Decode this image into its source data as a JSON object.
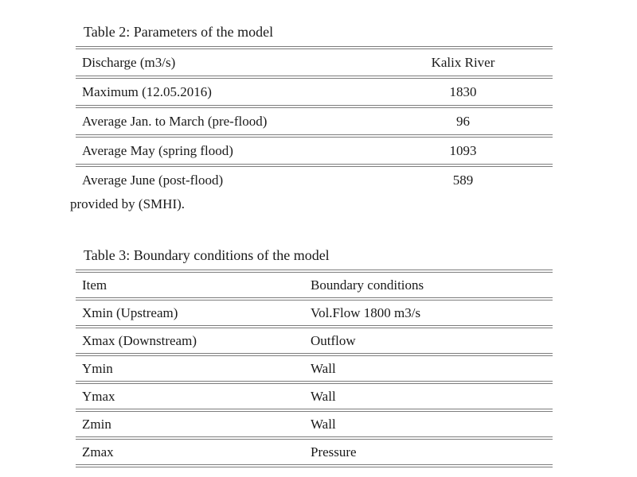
{
  "style": {
    "background": "#ffffff",
    "text_color": "#1a1a1a",
    "rule_color": "#7c7c7c"
  },
  "tables": [
    {
      "caption": "Table 2: Parameters of the model",
      "columns": [
        "Discharge (m3/s)",
        "Kalix River"
      ],
      "rows": [
        [
          "Maximum (12.05.2016)",
          "1830"
        ],
        [
          "Average Jan. to March (pre-flood)",
          "96"
        ],
        [
          "Average May (spring flood)",
          "1093"
        ],
        [
          "Average June (post-flood)",
          "589"
        ]
      ],
      "note": "provided by (SMHI)."
    },
    {
      "caption": "Table 3: Boundary conditions of the model",
      "columns": [
        "Item",
        "Boundary conditions"
      ],
      "rows": [
        [
          "Xmin (Upstream)",
          "Vol.Flow 1800 m3/s"
        ],
        [
          "Xmax (Downstream)",
          "Outflow"
        ],
        [
          "Ymin",
          "Wall"
        ],
        [
          "Ymax",
          "Wall"
        ],
        [
          "Zmin",
          "Wall"
        ],
        [
          "Zmax",
          "Pressure"
        ]
      ]
    }
  ]
}
